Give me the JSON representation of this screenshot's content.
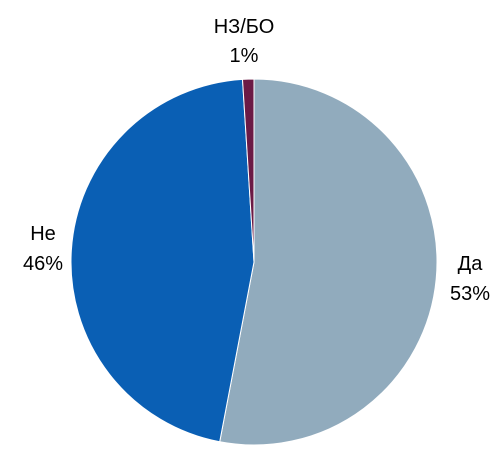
{
  "chart_data": {
    "type": "pie",
    "start_angle_deg": -90,
    "direction": "clockwise",
    "slices": [
      {
        "label": "Да",
        "value": 53,
        "value_label": "53%",
        "color": "#91abbd"
      },
      {
        "label": "Не",
        "value": 46,
        "value_label": "46%",
        "color": "#0a5fb4"
      },
      {
        "label": "НЗ/БО",
        "value": 1,
        "value_label": "1%",
        "color": "#6b1a45"
      }
    ],
    "legend": "none",
    "labels": "outside"
  }
}
